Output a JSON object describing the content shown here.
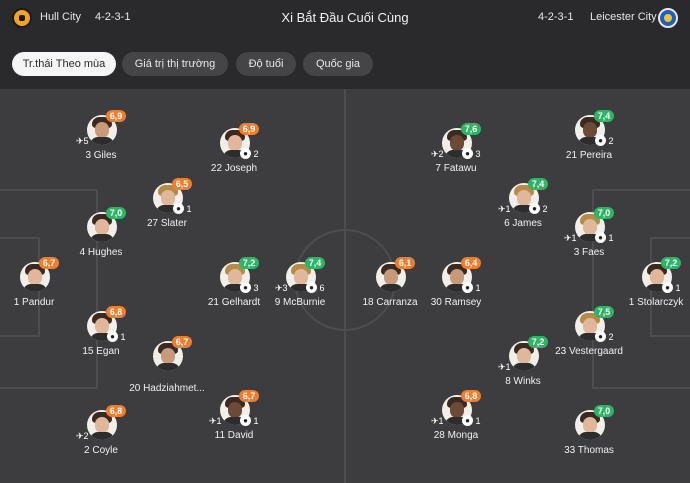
{
  "header": {
    "home_team": "Hull City",
    "home_formation": "4-2-3-1",
    "title": "Xi Bắt Đầu Cuối Cùng",
    "away_formation": "4-2-3-1",
    "away_team": "Leicester City"
  },
  "tabs": [
    {
      "label": "Tr.thái Theo mùa"
    },
    {
      "label": "Giá trị thị trường"
    },
    {
      "label": "Độ tuổi"
    },
    {
      "label": "Quốc gia"
    }
  ],
  "players": {
    "giles": {
      "name": "3 Giles",
      "rating": "6,9",
      "left_stat": "5",
      "right_stat": ""
    },
    "joseph": {
      "name": "22 Joseph",
      "rating": "6,9",
      "left_stat": "",
      "right_stat": "2"
    },
    "slater": {
      "name": "27 Slater",
      "rating": "6,5",
      "left_stat": "",
      "right_stat": "1"
    },
    "hughes": {
      "name": "4 Hughes",
      "rating": "7,0",
      "left_stat": "",
      "right_stat": ""
    },
    "pandur": {
      "name": "1 Pandur",
      "rating": "6,7",
      "left_stat": "",
      "right_stat": ""
    },
    "gelhardt": {
      "name": "21 Gelhardt",
      "rating": "7,2",
      "left_stat": "",
      "right_stat": "3"
    },
    "mcburnie": {
      "name": "9 McBurnie",
      "rating": "7,4",
      "left_stat": "3",
      "right_stat": "6"
    },
    "egan": {
      "name": "15 Egan",
      "rating": "6,8",
      "left_stat": "",
      "right_stat": "1"
    },
    "hadzi": {
      "name": "20 Hadziahmet...",
      "rating": "6,7",
      "left_stat": "",
      "right_stat": ""
    },
    "coyle": {
      "name": "2 Coyle",
      "rating": "6,8",
      "left_stat": "2",
      "right_stat": ""
    },
    "david": {
      "name": "11 David",
      "rating": "6,7",
      "left_stat": "1",
      "right_stat": "1"
    },
    "fatawu": {
      "name": "7 Fatawu",
      "rating": "7,6",
      "left_stat": "2",
      "right_stat": "3"
    },
    "pereira": {
      "name": "21 Pereira",
      "rating": "7,4",
      "left_stat": "",
      "right_stat": "2"
    },
    "james": {
      "name": "6 James",
      "rating": "7,4",
      "left_stat": "1",
      "right_stat": "2"
    },
    "faes": {
      "name": "3 Faes",
      "rating": "7,0",
      "left_stat": "1",
      "right_stat": "1"
    },
    "carranza": {
      "name": "18 Carranza",
      "rating": "6,1",
      "left_stat": "",
      "right_stat": ""
    },
    "ramsey": {
      "name": "30 Ramsey",
      "rating": "6,4",
      "left_stat": "",
      "right_stat": "1"
    },
    "stolarczyk": {
      "name": "1 Stolarczyk",
      "rating": "7,2",
      "left_stat": "",
      "right_stat": "1"
    },
    "vestergaard": {
      "name": "23 Vestergaard",
      "rating": "7,5",
      "left_stat": "",
      "right_stat": "2"
    },
    "winks": {
      "name": "8 Winks",
      "rating": "7,2",
      "left_stat": "1",
      "right_stat": ""
    },
    "monga": {
      "name": "28 Monga",
      "rating": "6,8",
      "left_stat": "1",
      "right_stat": "1"
    },
    "thomas": {
      "name": "33 Thomas",
      "rating": "7,0",
      "left_stat": "",
      "right_stat": ""
    }
  },
  "colors": {
    "orange_rating": "#ef7d2e",
    "green_rating": "#2db465",
    "pitch": "#3d3d3f"
  },
  "icons": {
    "boot": "boot-icon",
    "ball": "ball-icon",
    "home_crest": "hull-city-crest-icon",
    "away_crest": "leicester-city-crest-icon"
  }
}
